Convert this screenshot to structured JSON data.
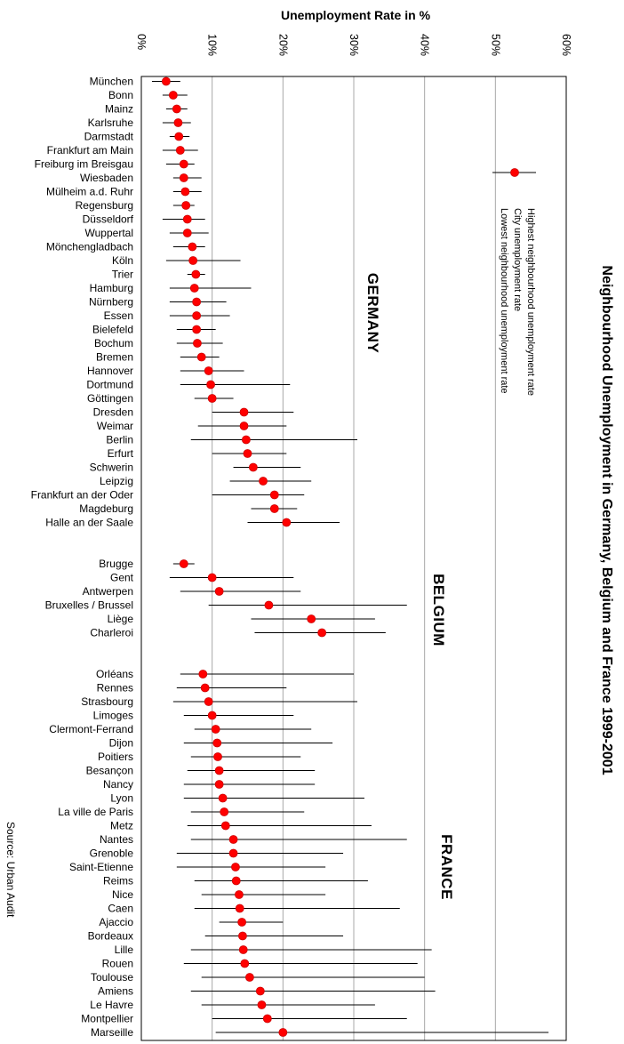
{
  "chart_data": {
    "type": "scatter",
    "title": "Neighbourhood Unemployment in Germany, Belgium and France 1999-2001",
    "xlabel": "Unemployment Rate in %",
    "ylabel": "",
    "xlim": [
      0,
      60
    ],
    "x_ticks": [
      "0%",
      "10%",
      "20%",
      "30%",
      "40%",
      "50%",
      "60%"
    ],
    "grid": true,
    "legend": {
      "position": "right",
      "entries": [
        "Highest neighbourhood unemployment rate",
        "City unemployment rate",
        "Lowest neighbourhood unemployment rate"
      ]
    },
    "source": "Source: Urban Audit",
    "groups": [
      {
        "country": "GERMANY",
        "cities": [
          {
            "name": "München",
            "city": 3.5,
            "low": 1.5,
            "high": 5.5
          },
          {
            "name": "Bonn",
            "city": 4.5,
            "low": 3.0,
            "high": 6.5
          },
          {
            "name": "Mainz",
            "city": 5.0,
            "low": 3.5,
            "high": 6.5
          },
          {
            "name": "Karlsruhe",
            "city": 5.2,
            "low": 3.0,
            "high": 7.0
          },
          {
            "name": "Darmstadt",
            "city": 5.3,
            "low": 4.0,
            "high": 6.8
          },
          {
            "name": "Frankfurt am Main",
            "city": 5.5,
            "low": 3.0,
            "high": 8.0
          },
          {
            "name": "Freiburg im Breisgau",
            "city": 6.0,
            "low": 3.5,
            "high": 7.5
          },
          {
            "name": "Wiesbaden",
            "city": 6.0,
            "low": 4.5,
            "high": 8.5
          },
          {
            "name": "Mülheim a.d. Ruhr",
            "city": 6.2,
            "low": 4.5,
            "high": 8.5
          },
          {
            "name": "Regensburg",
            "city": 6.3,
            "low": 4.5,
            "high": 7.5
          },
          {
            "name": "Düsseldorf",
            "city": 6.5,
            "low": 3.0,
            "high": 9.0
          },
          {
            "name": "Wuppertal",
            "city": 6.5,
            "low": 4.0,
            "high": 9.5
          },
          {
            "name": "Mönchengladbach",
            "city": 7.2,
            "low": 4.5,
            "high": 9.0
          },
          {
            "name": "Köln",
            "city": 7.3,
            "low": 3.5,
            "high": 14.0
          },
          {
            "name": "Trier",
            "city": 7.7,
            "low": 6.5,
            "high": 9.0
          },
          {
            "name": "Hamburg",
            "city": 7.5,
            "low": 4.0,
            "high": 15.5
          },
          {
            "name": "Nürnberg",
            "city": 7.8,
            "low": 4.0,
            "high": 12.0
          },
          {
            "name": "Essen",
            "city": 7.8,
            "low": 4.0,
            "high": 12.5
          },
          {
            "name": "Bielefeld",
            "city": 7.8,
            "low": 5.0,
            "high": 10.5
          },
          {
            "name": "Bochum",
            "city": 7.9,
            "low": 5.0,
            "high": 11.5
          },
          {
            "name": "Bremen",
            "city": 8.5,
            "low": 5.5,
            "high": 11.0
          },
          {
            "name": "Hannover",
            "city": 9.5,
            "low": 5.5,
            "high": 14.5
          },
          {
            "name": "Dortmund",
            "city": 9.8,
            "low": 5.5,
            "high": 21.0
          },
          {
            "name": "Göttingen",
            "city": 10.0,
            "low": 7.5,
            "high": 13.0
          },
          {
            "name": "Dresden",
            "city": 14.5,
            "low": 10.0,
            "high": 21.5
          },
          {
            "name": "Weimar",
            "city": 14.5,
            "low": 8.0,
            "high": 20.5
          },
          {
            "name": "Berlin",
            "city": 14.8,
            "low": 7.0,
            "high": 30.5
          },
          {
            "name": "Erfurt",
            "city": 15.0,
            "low": 10.0,
            "high": 20.5
          },
          {
            "name": "Schwerin",
            "city": 15.8,
            "low": 13.0,
            "high": 22.5
          },
          {
            "name": "Leipzig",
            "city": 17.2,
            "low": 12.5,
            "high": 24.0
          },
          {
            "name": "Frankfurt an der Oder",
            "city": 18.8,
            "low": 10.0,
            "high": 23.0
          },
          {
            "name": "Magdeburg",
            "city": 18.8,
            "low": 15.5,
            "high": 22.0
          },
          {
            "name": "Halle an der Saale",
            "city": 20.5,
            "low": 15.0,
            "high": 28.0
          }
        ]
      },
      {
        "country": "BELGIUM",
        "cities": [
          {
            "name": "Brugge",
            "city": 6.0,
            "low": 4.5,
            "high": 7.5
          },
          {
            "name": "Gent",
            "city": 10.0,
            "low": 4.0,
            "high": 21.5
          },
          {
            "name": "Antwerpen",
            "city": 11.0,
            "low": 5.5,
            "high": 22.5
          },
          {
            "name": "Bruxelles / Brussel",
            "city": 18.0,
            "low": 9.5,
            "high": 37.5
          },
          {
            "name": "Liège",
            "city": 24.0,
            "low": 15.5,
            "high": 33.0
          },
          {
            "name": "Charleroi",
            "city": 25.5,
            "low": 16.0,
            "high": 34.5
          }
        ]
      },
      {
        "country": "FRANCE",
        "cities": [
          {
            "name": "Orléans",
            "city": 8.7,
            "low": 5.5,
            "high": 30.0
          },
          {
            "name": "Rennes",
            "city": 9.0,
            "low": 5.0,
            "high": 20.5
          },
          {
            "name": "Strasbourg",
            "city": 9.5,
            "low": 4.5,
            "high": 30.5
          },
          {
            "name": "Limoges",
            "city": 10.0,
            "low": 6.0,
            "high": 21.5
          },
          {
            "name": "Clermont-Ferrand",
            "city": 10.5,
            "low": 7.5,
            "high": 24.0
          },
          {
            "name": "Dijon",
            "city": 10.7,
            "low": 6.0,
            "high": 27.0
          },
          {
            "name": "Poitiers",
            "city": 10.8,
            "low": 7.0,
            "high": 22.5
          },
          {
            "name": "Besançon",
            "city": 11.0,
            "low": 6.5,
            "high": 24.5
          },
          {
            "name": "Nancy",
            "city": 11.0,
            "low": 6.0,
            "high": 24.5
          },
          {
            "name": "Lyon",
            "city": 11.5,
            "low": 6.0,
            "high": 31.5
          },
          {
            "name": "La ville de Paris",
            "city": 11.7,
            "low": 7.0,
            "high": 23.0
          },
          {
            "name": "Metz",
            "city": 11.9,
            "low": 6.5,
            "high": 32.5
          },
          {
            "name": "Nantes",
            "city": 13.0,
            "low": 7.0,
            "high": 37.5
          },
          {
            "name": "Grenoble",
            "city": 13.0,
            "low": 5.0,
            "high": 28.5
          },
          {
            "name": "Saint-Etienne",
            "city": 13.3,
            "low": 5.0,
            "high": 26.0
          },
          {
            "name": "Reims",
            "city": 13.4,
            "low": 7.5,
            "high": 32.0
          },
          {
            "name": "Nice",
            "city": 13.8,
            "low": 8.5,
            "high": 26.0
          },
          {
            "name": "Caen",
            "city": 13.9,
            "low": 7.5,
            "high": 36.5
          },
          {
            "name": "Ajaccio",
            "city": 14.2,
            "low": 11.0,
            "high": 20.0
          },
          {
            "name": "Bordeaux",
            "city": 14.3,
            "low": 9.0,
            "high": 28.5
          },
          {
            "name": "Lille",
            "city": 14.4,
            "low": 7.0,
            "high": 41.0
          },
          {
            "name": "Rouen",
            "city": 14.6,
            "low": 6.0,
            "high": 39.0
          },
          {
            "name": "Toulouse",
            "city": 15.3,
            "low": 8.5,
            "high": 40.0
          },
          {
            "name": "Amiens",
            "city": 16.8,
            "low": 7.0,
            "high": 41.5
          },
          {
            "name": "Le Havre",
            "city": 17.0,
            "low": 8.5,
            "high": 33.0
          },
          {
            "name": "Montpellier",
            "city": 17.8,
            "low": 10.0,
            "high": 37.5
          },
          {
            "name": "Marseille",
            "city": 20.0,
            "low": 10.5,
            "high": 57.5
          }
        ]
      }
    ]
  }
}
